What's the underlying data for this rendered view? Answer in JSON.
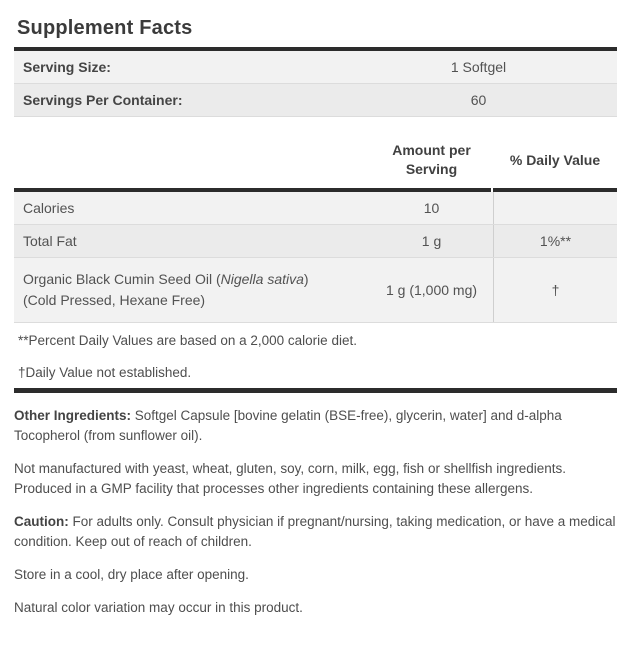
{
  "title": "Supplement Facts",
  "colors": {
    "bar": "#2c2c2c",
    "row_light": "#f2f2f2",
    "row_dark": "#ebebeb",
    "text": "#4e4e4e"
  },
  "serving_info": {
    "rows": [
      {
        "label": "Serving Size:",
        "value": "1 Softgel"
      },
      {
        "label": "Servings Per Container:",
        "value": "60"
      }
    ]
  },
  "facts_table": {
    "headers": {
      "amount": "Amount per Serving",
      "daily_value": "% Daily Value"
    },
    "rows": [
      {
        "label": "Calories",
        "amount": "10",
        "daily_value": ""
      },
      {
        "label": "Total Fat",
        "amount": "1 g",
        "daily_value": "1%**"
      },
      {
        "label_prefix": "Organic Black Cumin Seed Oil (",
        "label_italic": "Nigella sativa",
        "label_suffix": ")",
        "label_line2": "(Cold Pressed, Hexane Free)",
        "amount": "1 g (1,000 mg)",
        "daily_value": "†"
      }
    ],
    "footnotes": [
      "**Percent Daily Values are based on a 2,000 calorie diet.",
      "†Daily Value not established."
    ]
  },
  "details": {
    "other_ingredients_label": "Other Ingredients:",
    "other_ingredients_text": " Softgel Capsule [bovine gelatin (BSE-free), glycerin, water] and d-alpha Tocopherol (from sunflower oil).",
    "allergen_statement": "Not manufactured with yeast, wheat, gluten, soy, corn, milk, egg, fish or shellfish ingredients. Produced in a GMP facility that processes other ingredients containing these allergens.",
    "caution_label": "Caution:",
    "caution_text": " For adults only. Consult physician if pregnant/nursing, taking medication, or have a medical condition. Keep out of reach of children.",
    "storage_note": "Store in a cool, dry place after opening.",
    "color_note": "Natural color variation may occur in this product."
  }
}
